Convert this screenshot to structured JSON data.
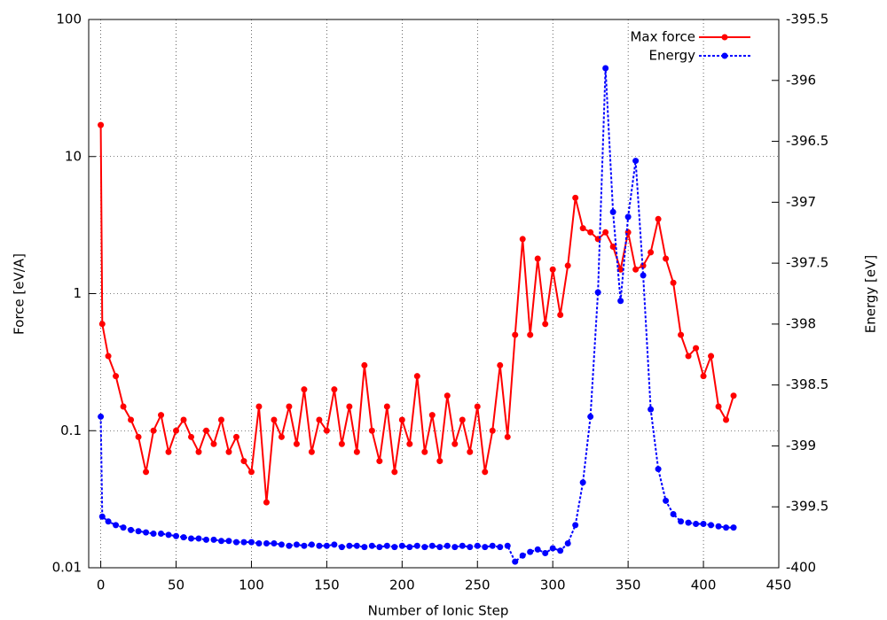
{
  "chart_data": {
    "type": "line",
    "xlabel": "Number of Ionic Step",
    "ylabel": "Force [eV/A]",
    "y2label": "Energy [eV]",
    "x": [
      0,
      1,
      5,
      10,
      15,
      20,
      25,
      30,
      35,
      40,
      45,
      50,
      55,
      60,
      65,
      70,
      75,
      80,
      85,
      90,
      95,
      100,
      105,
      110,
      115,
      120,
      125,
      130,
      135,
      140,
      145,
      150,
      155,
      160,
      165,
      170,
      175,
      180,
      185,
      190,
      195,
      200,
      205,
      210,
      215,
      220,
      225,
      230,
      235,
      240,
      245,
      250,
      255,
      260,
      265,
      270,
      275,
      280,
      285,
      290,
      295,
      300,
      305,
      310,
      315,
      320,
      325,
      330,
      335,
      340,
      345,
      350,
      355,
      360,
      365,
      370,
      375,
      380,
      385,
      390,
      395,
      400,
      405,
      410,
      415,
      420
    ],
    "series": [
      {
        "name": "Max force",
        "color": "#ff0000",
        "axis": "y",
        "dash": false,
        "values": [
          17,
          0.6,
          0.35,
          0.25,
          0.15,
          0.12,
          0.09,
          0.05,
          0.1,
          0.13,
          0.07,
          0.1,
          0.12,
          0.09,
          0.07,
          0.1,
          0.08,
          0.12,
          0.07,
          0.09,
          0.06,
          0.05,
          0.15,
          0.03,
          0.12,
          0.09,
          0.15,
          0.08,
          0.2,
          0.07,
          0.12,
          0.1,
          0.2,
          0.08,
          0.15,
          0.07,
          0.3,
          0.1,
          0.06,
          0.15,
          0.05,
          0.12,
          0.08,
          0.25,
          0.07,
          0.13,
          0.06,
          0.18,
          0.08,
          0.12,
          0.07,
          0.15,
          0.05,
          0.1,
          0.3,
          0.09,
          0.5,
          2.5,
          0.5,
          1.8,
          0.6,
          1.5,
          0.7,
          1.6,
          5,
          3.0,
          2.8,
          2.5,
          2.8,
          2.2,
          1.5,
          2.8,
          1.5,
          1.6,
          2.0,
          3.5,
          1.8,
          1.2,
          0.5,
          0.35,
          0.4,
          0.25,
          0.35,
          0.15,
          0.12,
          0.18
        ]
      },
      {
        "name": "Energy",
        "color": "#0000ff",
        "axis": "y2",
        "dash": true,
        "values": [
          -398.76,
          -399.58,
          -399.62,
          -399.65,
          -399.67,
          -399.69,
          -399.7,
          -399.71,
          -399.72,
          -399.72,
          -399.73,
          -399.74,
          -399.75,
          -399.76,
          -399.76,
          -399.77,
          -399.77,
          -399.78,
          -399.78,
          -399.79,
          -399.79,
          -399.79,
          -399.8,
          -399.8,
          -399.8,
          -399.81,
          -399.82,
          -399.81,
          -399.82,
          -399.81,
          -399.82,
          -399.82,
          -399.81,
          -399.83,
          -399.82,
          -399.82,
          -399.83,
          -399.82,
          -399.83,
          -399.82,
          -399.83,
          -399.82,
          -399.83,
          -399.82,
          -399.83,
          -399.82,
          -399.83,
          -399.82,
          -399.83,
          -399.82,
          -399.83,
          -399.82,
          -399.83,
          -399.82,
          -399.83,
          -399.82,
          -399.95,
          -399.9,
          -399.87,
          -399.85,
          -399.88,
          -399.84,
          -399.86,
          -399.8,
          -399.65,
          -399.3,
          -398.76,
          -397.74,
          -395.9,
          -397.08,
          -397.81,
          -397.12,
          -396.66,
          -397.6,
          -398.7,
          -399.19,
          -399.45,
          -399.56,
          -399.62,
          -399.63,
          -399.64,
          -399.64,
          -399.65,
          -399.66,
          -399.67,
          -399.67
        ]
      }
    ],
    "xlim": [
      -8,
      450
    ],
    "xticks": [
      0,
      50,
      100,
      150,
      200,
      250,
      300,
      350,
      400,
      450
    ],
    "ylim": [
      0.01,
      100
    ],
    "yticks": [
      0.01,
      0.1,
      1,
      10,
      100
    ],
    "yscale": "log",
    "y2lim": [
      -400,
      -395.5
    ],
    "y2ticks": [
      -400,
      -399.5,
      -399,
      -398.5,
      -398,
      -397.5,
      -397,
      -396.5,
      -396,
      -395.5
    ],
    "grid": true,
    "legend": "top right"
  }
}
